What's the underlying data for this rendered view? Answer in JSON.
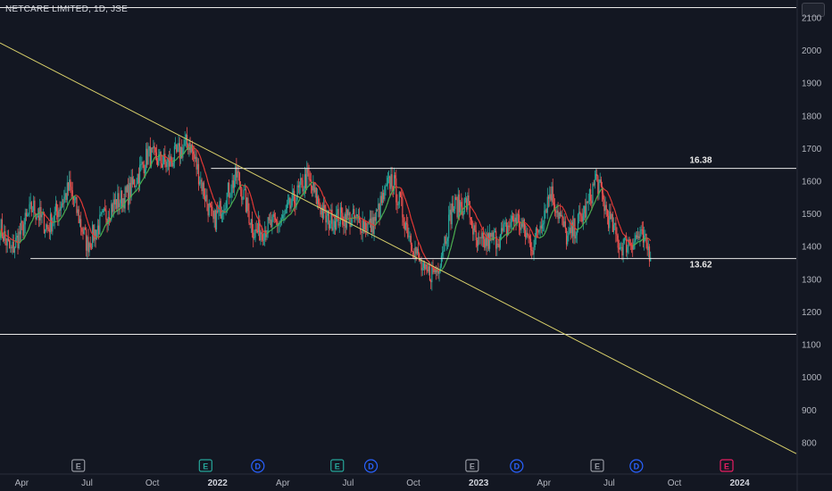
{
  "header": {
    "title": "NETCARE LIMITED, 1D, JSE"
  },
  "colors": {
    "background": "#131722",
    "grid_text": "#b2b5be",
    "line": "#e8e8e8",
    "trendline": "#d8cf6a",
    "candle_up": "#26a69a",
    "candle_down": "#ef5350",
    "ma_up": "#4caf50",
    "ma_down": "#e53935"
  },
  "chart_data": {
    "type": "candlestick",
    "title": "NETCARE LIMITED, 1D, JSE",
    "y_ticks": [
      "800",
      "900",
      "1000",
      "1100",
      "1200",
      "1300",
      "1400",
      "1500",
      "1600",
      "1700",
      "1800",
      "1900",
      "2000",
      "2100"
    ],
    "ylim": [
      760,
      2145
    ],
    "x_ticks": [
      {
        "label": "Apr",
        "t": 0.5
      },
      {
        "label": "Jul",
        "t": 3.5
      },
      {
        "label": "Oct",
        "t": 6.5
      },
      {
        "label": "2022",
        "t": 9.5,
        "bold": true
      },
      {
        "label": "Apr",
        "t": 12.5
      },
      {
        "label": "Jul",
        "t": 15.5
      },
      {
        "label": "Oct",
        "t": 18.5
      },
      {
        "label": "2023",
        "t": 21.5,
        "bold": true
      },
      {
        "label": "Apr",
        "t": 24.5
      },
      {
        "label": "Jul",
        "t": 27.5
      },
      {
        "label": "Oct",
        "t": 30.5
      },
      {
        "label": "2024",
        "t": 33.5,
        "bold": true
      }
    ],
    "xlim": [
      -0.5,
      36.1
    ],
    "levels": [
      {
        "name": "resistance",
        "value": 1638,
        "label": "16.38",
        "x_start": 9.2
      },
      {
        "name": "support",
        "value": 1362,
        "label": "13.62",
        "x_start": 0.9
      },
      {
        "name": "lower-line",
        "value": 1130,
        "label": "",
        "x_start": -0.5
      },
      {
        "name": "top-line",
        "value": 2130,
        "label": "",
        "x_start": -0.5
      }
    ],
    "trendline": {
      "from": [
        -0.5,
        2022
      ],
      "to": [
        36.1,
        765
      ]
    },
    "anchor_closes": [
      [
        -0.5,
        1460
      ],
      [
        0,
        1380
      ],
      [
        1,
        1520
      ],
      [
        1.7,
        1455
      ],
      [
        2.7,
        1580
      ],
      [
        3.5,
        1405
      ],
      [
        4.6,
        1520
      ],
      [
        5.4,
        1560
      ],
      [
        6.3,
        1680
      ],
      [
        7.2,
        1650
      ],
      [
        8.2,
        1720
      ],
      [
        9.3,
        1470
      ],
      [
        10.4,
        1620
      ],
      [
        11.2,
        1440
      ],
      [
        12.5,
        1480
      ],
      [
        13.6,
        1610
      ],
      [
        14.5,
        1480
      ],
      [
        15.4,
        1490
      ],
      [
        16.6,
        1460
      ],
      [
        17.5,
        1610
      ],
      [
        18.3,
        1440
      ],
      [
        19,
        1310
      ],
      [
        19.6,
        1330
      ],
      [
        20.3,
        1520
      ],
      [
        21,
        1530
      ],
      [
        21.4,
        1400
      ],
      [
        22.5,
        1430
      ],
      [
        23.2,
        1490
      ],
      [
        24,
        1400
      ],
      [
        24.8,
        1570
      ],
      [
        25.6,
        1420
      ],
      [
        26.5,
        1520
      ],
      [
        26.9,
        1610
      ],
      [
        27.4,
        1500
      ],
      [
        28,
        1400
      ],
      [
        28.9,
        1430
      ],
      [
        29.4,
        1380
      ]
    ],
    "events": [
      {
        "type": "E",
        "t": 3.1,
        "color": "#9598a1"
      },
      {
        "type": "E",
        "t": 8.95,
        "color": "#26a69a"
      },
      {
        "type": "D",
        "t": 11.35,
        "color": "#2962ff"
      },
      {
        "type": "E",
        "t": 15.0,
        "color": "#26a69a"
      },
      {
        "type": "D",
        "t": 16.55,
        "color": "#2962ff"
      },
      {
        "type": "E",
        "t": 21.2,
        "color": "#9598a1"
      },
      {
        "type": "D",
        "t": 23.25,
        "color": "#2962ff"
      },
      {
        "type": "E",
        "t": 26.95,
        "color": "#9598a1"
      },
      {
        "type": "D",
        "t": 28.75,
        "color": "#2962ff"
      },
      {
        "type": "E",
        "t": 32.9,
        "color": "#e91e63"
      }
    ]
  }
}
